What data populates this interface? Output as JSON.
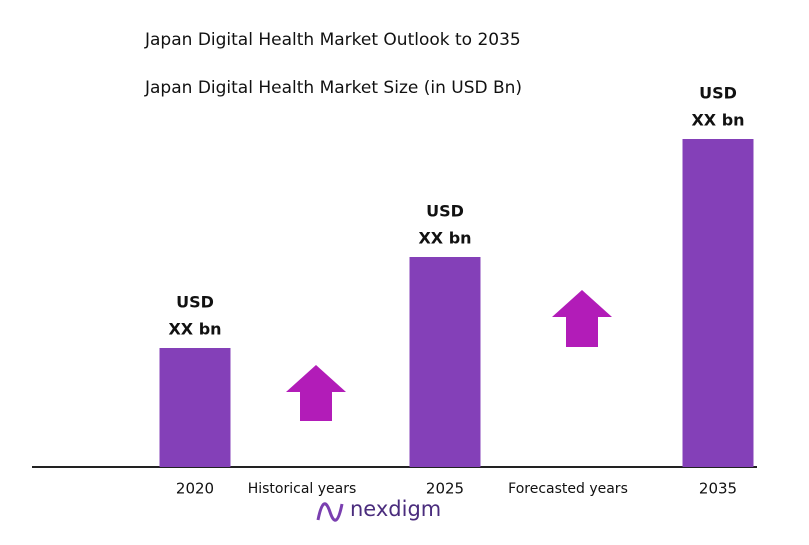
{
  "chart_data": {
    "type": "bar",
    "title": "Japan Digital Health Market Outlook to 2035",
    "subtitle": "Japan Digital Health Market Size (in USD Bn)",
    "categories": [
      "2020",
      "2025",
      "2035"
    ],
    "values": [
      119,
      210,
      328
    ],
    "value_labels": [
      [
        "USD",
        "XX bn"
      ],
      [
        "USD",
        "XX bn"
      ],
      [
        "USD",
        "XX bn"
      ]
    ],
    "color": "#8440b8",
    "annotations": [
      "Historical years",
      "Forecasted years"
    ]
  },
  "brand": "nexdigm"
}
